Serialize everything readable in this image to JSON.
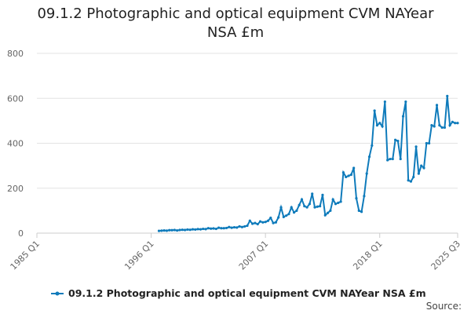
{
  "chart_data": {
    "type": "line",
    "title": "09.1.2 Photographic and optical equipment CVM NAYear NSA £m",
    "source": "Source:",
    "xlim": [
      1985,
      2025.5
    ],
    "xticks": [
      {
        "value": 1985,
        "label": "1985 Q1"
      },
      {
        "value": 1996,
        "label": "1996 Q1"
      },
      {
        "value": 2007,
        "label": "2007 Q1"
      },
      {
        "value": 2018,
        "label": "2018 Q1"
      },
      {
        "value": 2025.5,
        "label": "2025 Q3"
      }
    ],
    "ylim": [
      0,
      800
    ],
    "yticks": [
      0,
      200,
      400,
      600,
      800
    ],
    "grid": true,
    "x": [
      1996.75,
      1997,
      1997.25,
      1997.5,
      1997.75,
      1998,
      1998.25,
      1998.5,
      1998.75,
      1999,
      1999.25,
      1999.5,
      1999.75,
      2000,
      2000.25,
      2000.5,
      2000.75,
      2001,
      2001.25,
      2001.5,
      2001.75,
      2002,
      2002.25,
      2002.5,
      2002.75,
      2003,
      2003.25,
      2003.5,
      2003.75,
      2004,
      2004.25,
      2004.5,
      2004.75,
      2005,
      2005.25,
      2005.5,
      2005.75,
      2006,
      2006.25,
      2006.5,
      2006.75,
      2007,
      2007.25,
      2007.5,
      2007.75,
      2008,
      2008.25,
      2008.5,
      2008.75,
      2009,
      2009.25,
      2009.5,
      2009.75,
      2010,
      2010.25,
      2010.5,
      2010.75,
      2011,
      2011.25,
      2011.5,
      2011.75,
      2012,
      2012.25,
      2012.5,
      2012.75,
      2013,
      2013.25,
      2013.5,
      2013.75,
      2014,
      2014.25,
      2014.5,
      2014.75,
      2015,
      2015.25,
      2015.5,
      2015.75,
      2016,
      2016.25,
      2016.5,
      2016.75,
      2017,
      2017.25,
      2017.5,
      2017.75,
      2018,
      2018.25,
      2018.5,
      2018.75,
      2019,
      2019.25,
      2019.5,
      2019.75,
      2020,
      2020.25,
      2020.5,
      2020.75,
      2021,
      2021.25,
      2021.5,
      2021.75,
      2022,
      2022.25,
      2022.5,
      2022.75,
      2023,
      2023.25,
      2023.5,
      2023.75,
      2024,
      2024.25,
      2024.5,
      2024.75,
      2025,
      2025.25,
      2025.5
    ],
    "series": [
      {
        "name": "09.1.2 Photographic and optical equipment CVM NAYear NSA £m",
        "color": "#0f7bbb",
        "values": [
          10,
          11,
          12,
          11,
          13,
          13,
          14,
          12,
          14,
          15,
          14,
          16,
          15,
          17,
          16,
          18,
          17,
          19,
          18,
          22,
          20,
          21,
          19,
          24,
          22,
          22,
          23,
          27,
          24,
          26,
          25,
          30,
          27,
          30,
          33,
          55,
          42,
          45,
          40,
          52,
          48,
          50,
          55,
          68,
          45,
          48,
          70,
          115,
          72,
          78,
          85,
          115,
          92,
          100,
          125,
          150,
          120,
          115,
          130,
          175,
          115,
          118,
          120,
          170,
          80,
          90,
          100,
          150,
          130,
          135,
          140,
          270,
          250,
          255,
          260,
          290,
          155,
          100,
          95,
          165,
          265,
          340,
          390,
          545,
          480,
          490,
          475,
          585,
          325,
          330,
          330,
          415,
          410,
          330,
          520,
          585,
          235,
          230,
          250,
          385,
          265,
          300,
          290,
          400,
          400,
          480,
          475,
          570,
          480,
          470,
          470,
          610,
          480,
          495,
          490,
          490
        ]
      }
    ]
  }
}
